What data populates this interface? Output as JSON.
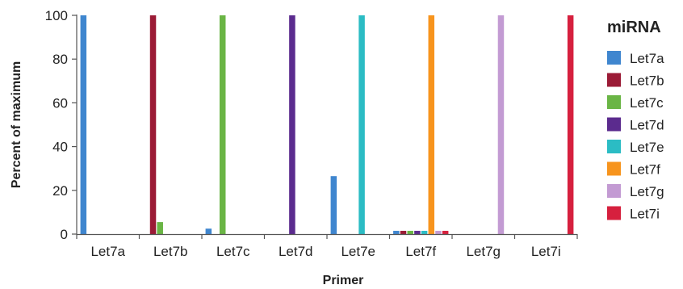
{
  "chart_data": {
    "type": "bar",
    "title": "",
    "xlabel": "Primer",
    "ylabel": "Percent of maximum",
    "ylim": [
      0,
      100
    ],
    "yticks": [
      0,
      20,
      40,
      60,
      80,
      100
    ],
    "grid": false,
    "legend_title": "miRNA",
    "legend_position": "right",
    "categories": [
      "Let7a",
      "Let7b",
      "Let7c",
      "Let7d",
      "Let7e",
      "Let7f",
      "Let7g",
      "Let7i"
    ],
    "series": [
      {
        "name": "Let7a",
        "color": "#3f86cf",
        "values": [
          100,
          0,
          2.5,
          0,
          26.5,
          1.5,
          0,
          0
        ]
      },
      {
        "name": "Let7b",
        "color": "#9b1b36",
        "values": [
          0,
          100,
          0,
          0,
          0,
          1.5,
          0,
          0
        ]
      },
      {
        "name": "Let7c",
        "color": "#6ab545",
        "values": [
          0,
          5.5,
          100,
          0,
          0,
          1.5,
          0,
          0
        ]
      },
      {
        "name": "Let7d",
        "color": "#5b2b8e",
        "values": [
          0,
          0,
          0,
          100,
          0,
          1.5,
          0,
          0
        ]
      },
      {
        "name": "Let7e",
        "color": "#2bbcc4",
        "values": [
          0,
          0,
          0,
          0,
          100,
          1.5,
          0,
          0
        ]
      },
      {
        "name": "Let7f",
        "color": "#f7941d",
        "values": [
          0,
          0,
          0,
          0,
          0,
          100,
          0,
          0
        ]
      },
      {
        "name": "Let7g",
        "color": "#c39bd3",
        "values": [
          0,
          0,
          0,
          0,
          0,
          1.5,
          100,
          0
        ]
      },
      {
        "name": "Let7i",
        "color": "#d6203e",
        "values": [
          0,
          0,
          0,
          0,
          0,
          1.5,
          0,
          100
        ]
      }
    ]
  }
}
